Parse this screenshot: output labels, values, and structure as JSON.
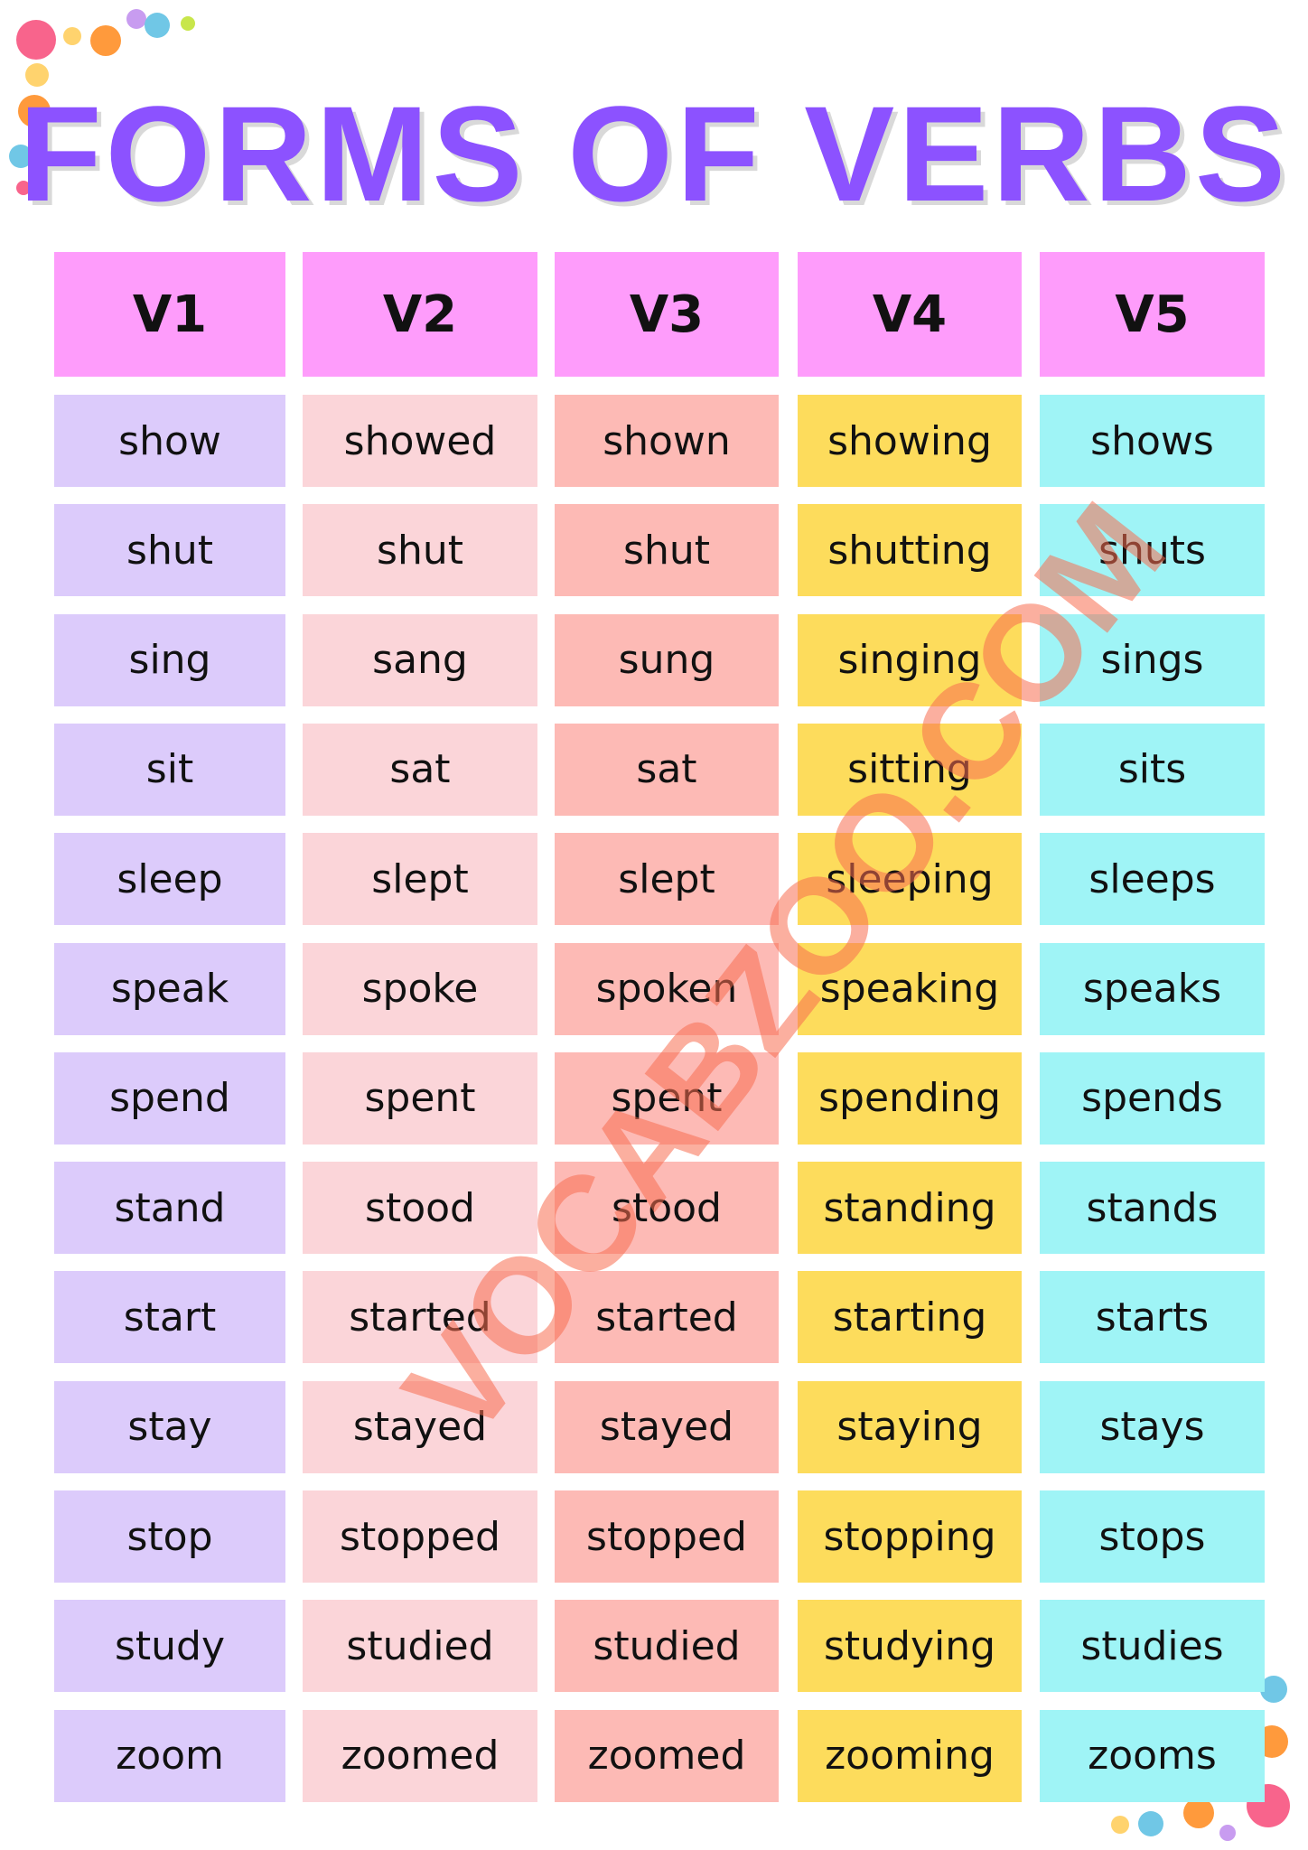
{
  "title": "FORMS OF VERBS",
  "watermark": "VOCABZOO.COM",
  "table": {
    "headers": [
      "V1",
      "V2",
      "V3",
      "V4",
      "V5"
    ],
    "rows": [
      [
        "show",
        "showed",
        "shown",
        "showing",
        "shows"
      ],
      [
        "shut",
        "shut",
        "shut",
        "shutting",
        "shuts"
      ],
      [
        "sing",
        "sang",
        "sung",
        "singing",
        "sings"
      ],
      [
        "sit",
        "sat",
        "sat",
        "sitting",
        "sits"
      ],
      [
        "sleep",
        "slept",
        "slept",
        "sleeping",
        "sleeps"
      ],
      [
        "speak",
        "spoke",
        "spoken",
        "speaking",
        "speaks"
      ],
      [
        "spend",
        "spent",
        "spent",
        "spending",
        "spends"
      ],
      [
        "stand",
        "stood",
        "stood",
        "standing",
        "stands"
      ],
      [
        "start",
        "started",
        "started",
        "starting",
        "starts"
      ],
      [
        "stay",
        "stayed",
        "stayed",
        "staying",
        "stays"
      ],
      [
        "stop",
        "stopped",
        "stopped",
        "stopping",
        "stops"
      ],
      [
        "study",
        "studied",
        "studied",
        "studying",
        "studies"
      ],
      [
        "zoom",
        "zoomed",
        "zoomed",
        "zooming",
        "zooms"
      ]
    ]
  }
}
